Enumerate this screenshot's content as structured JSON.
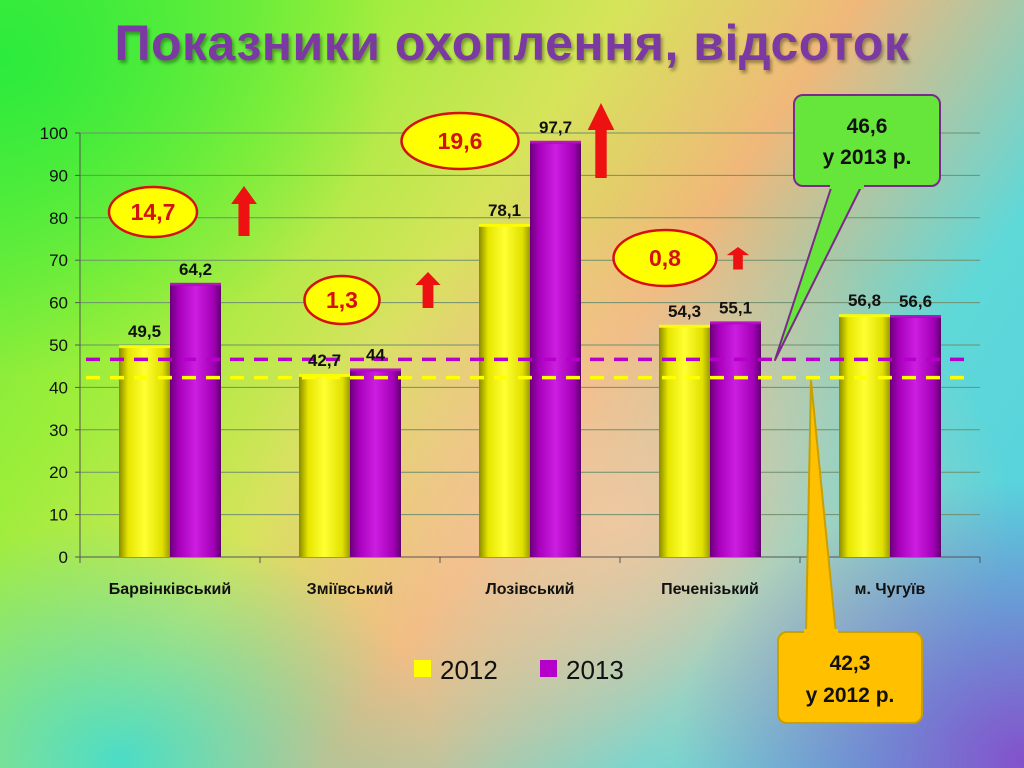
{
  "slide": {
    "title": "Показники охоплення, відсоток"
  },
  "colors": {
    "series_2012": "#ffff00",
    "series_2013": "#b400c8",
    "avg_2012_line": "#ffff00",
    "avg_2013_line": "#b400c8",
    "increase_badge_fill": "#ffff00",
    "increase_badge_border": "#d41010",
    "increase_arrow": "#ee1111",
    "callout_2013_fill": "#66e63a",
    "callout_2012_fill": "#ffc000"
  },
  "chart_data": {
    "type": "bar",
    "categories": [
      "Барвінківський",
      "Зміївський",
      "Лозівський",
      "Печенізький",
      "м. Чугуїв"
    ],
    "series": [
      {
        "name": "2012",
        "values": [
          49.5,
          42.7,
          78.1,
          54.3,
          56.8
        ],
        "labels": [
          "49,5",
          "42,7",
          "78,1",
          "54,3",
          "56,8"
        ]
      },
      {
        "name": "2013",
        "values": [
          64.2,
          44,
          97.7,
          55.1,
          56.6
        ],
        "labels": [
          "64,2",
          "44",
          "97,7",
          "55,1",
          "56,6"
        ]
      }
    ],
    "ylim": [
      0,
      100
    ],
    "yticks": [
      0,
      10,
      20,
      30,
      40,
      50,
      60,
      70,
      80,
      90,
      100
    ],
    "grid": true,
    "legend_position": "bottom",
    "reference_lines": [
      {
        "value": 46.6,
        "style": "dashed",
        "color_key": "avg_2013_line"
      },
      {
        "value": 42.3,
        "style": "dashed",
        "color_key": "avg_2012_line"
      }
    ],
    "increase_annotations": [
      {
        "category": "Барвінківський",
        "label": "14,7",
        "arrow": "up"
      },
      {
        "category": "Зміївський",
        "label": "1,3",
        "arrow": "up"
      },
      {
        "category": "Лозівський",
        "label": "19,6",
        "arrow": "up"
      },
      {
        "category": "Печенізький",
        "label": "0,8",
        "arrow": "up"
      }
    ],
    "callouts": [
      {
        "line1": "46,6",
        "line2": "у 2013 р."
      },
      {
        "line1": "42,3",
        "line2": "у 2012 р."
      }
    ]
  }
}
